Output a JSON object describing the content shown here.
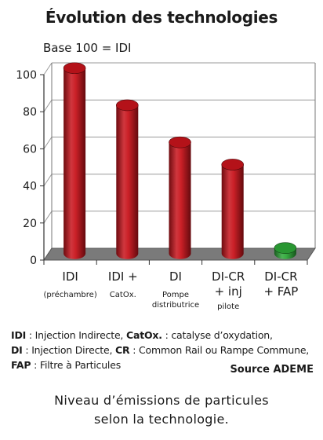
{
  "chart_data": {
    "type": "bar",
    "title": "Évolution des technologies",
    "subtitle": "Base 100 = IDI",
    "categories": [
      {
        "label": "IDI",
        "sublabel": "(préchambre)"
      },
      {
        "label": "IDI +",
        "sublabel": "CatOx."
      },
      {
        "label": "DI",
        "sublabel": "Pompe distributrice"
      },
      {
        "label": "DI-CR + inj",
        "sublabel": "pilote"
      },
      {
        "label": "DI-CR + FAP",
        "sublabel": ""
      }
    ],
    "values": [
      100,
      80,
      60,
      48,
      3
    ],
    "bar_colors": [
      "#c8141c",
      "#c8141c",
      "#c8141c",
      "#c8141c",
      "#2ea838"
    ],
    "yticks": [
      "0",
      "20",
      "40",
      "60",
      "80",
      "100"
    ],
    "ylim": [
      0,
      100
    ],
    "grid": true
  },
  "legend": {
    "line1": {
      "k1": "IDI",
      "t1": " : Injection Indirecte, ",
      "k2": "CatOx.",
      "t2": " : catalyse d’oxydation,"
    },
    "line2": {
      "k1": "DI",
      "t1": " : Injection Directe, ",
      "k2": "CR",
      "t2": " : Common Rail ou Rampe Commune,"
    },
    "line3": {
      "k1": "FAP",
      "t1": " : Filtre à Particules"
    }
  },
  "source": "Source ADEME",
  "caption": {
    "line1": "Niveau d’émissions de particules",
    "line2": "selon la technologie."
  }
}
